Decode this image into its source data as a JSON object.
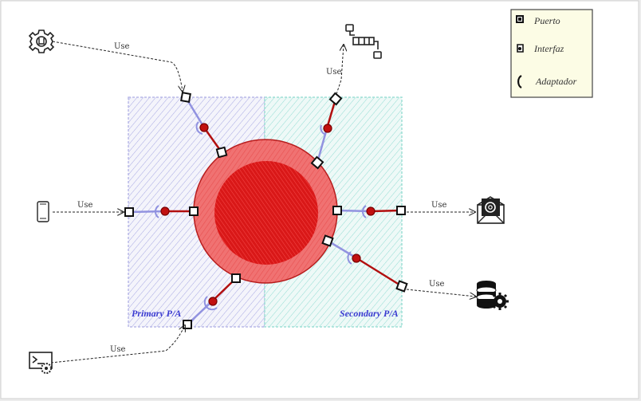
{
  "legend": {
    "items": [
      {
        "label": "Puerto",
        "icon": "port-icon"
      },
      {
        "label": "Interfaz",
        "icon": "interface-icon"
      },
      {
        "label": "Adaptador",
        "icon": "adapter-icon"
      }
    ]
  },
  "zones": {
    "primary_label": "Primary P/A",
    "secondary_label": "Secondary P/A"
  },
  "connections": {
    "use_label": "Use"
  },
  "actors": [
    {
      "name": "settings-gear-icon"
    },
    {
      "name": "mobile-phone-icon"
    },
    {
      "name": "terminal-gear-icon"
    },
    {
      "name": "message-queue-icon"
    },
    {
      "name": "email-icon"
    },
    {
      "name": "database-gear-icon"
    }
  ],
  "colors": {
    "primary_zone": "#7d7fd6",
    "secondary_zone": "#5cc9c0",
    "core": "#d81b1b",
    "primary_link": "#8f91e0",
    "adapter_link": "#b20f0f"
  }
}
